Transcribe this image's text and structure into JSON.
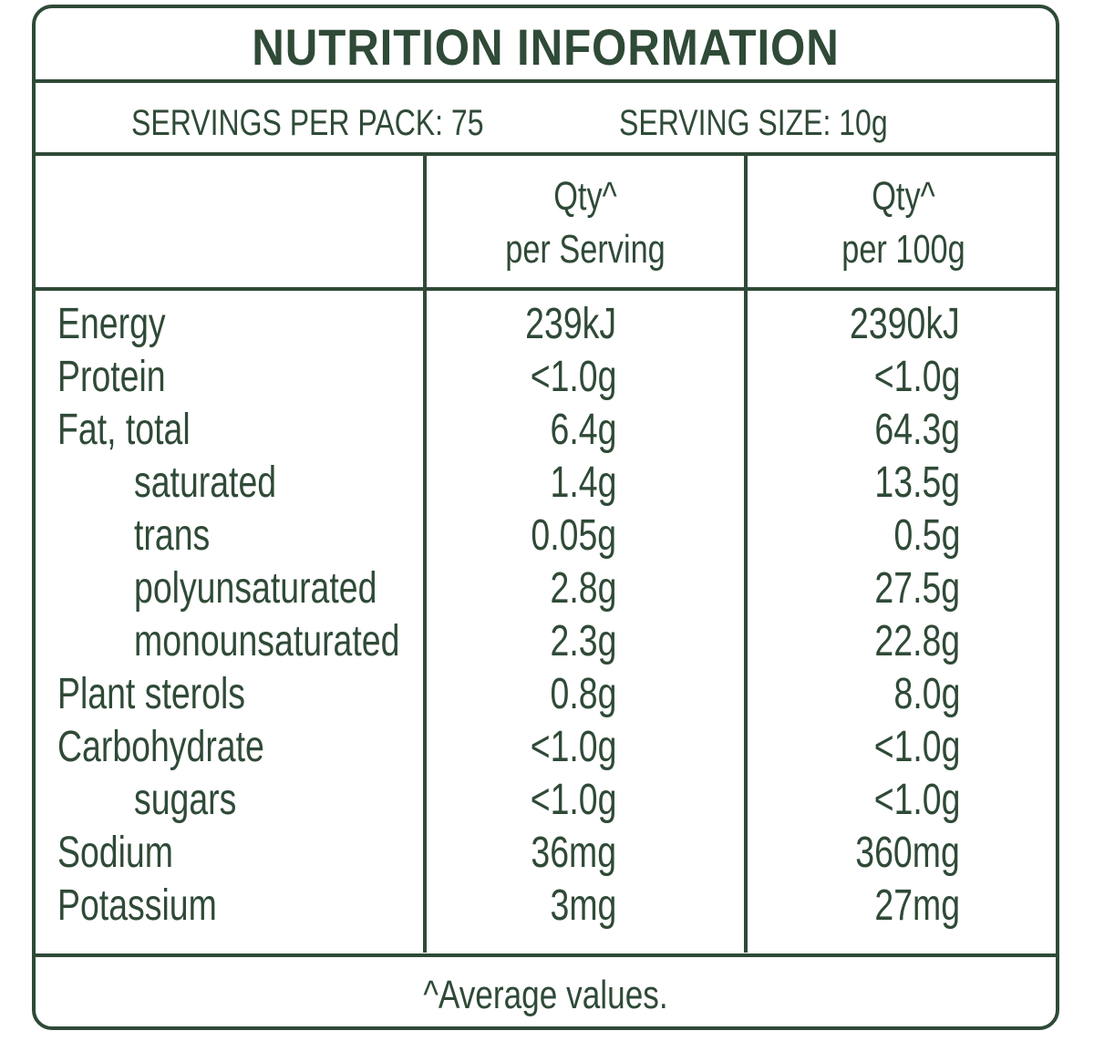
{
  "title": "NUTRITION INFORMATION",
  "servings_per_pack": "SERVINGS PER PACK: 75",
  "serving_size": "SERVING SIZE: 10g",
  "columns": {
    "per_serving_line1": "Qty^",
    "per_serving_line2": "per Serving",
    "per_100g_line1": "Qty^",
    "per_100g_line2": "per 100g"
  },
  "rows": [
    {
      "label": "Energy",
      "per_serving": "239kJ",
      "per_100g": "2390kJ"
    },
    {
      "label": "Protein",
      "per_serving": "<1.0g",
      "per_100g": "<1.0g"
    },
    {
      "label": "Fat, total",
      "per_serving": "6.4g",
      "per_100g": "64.3g"
    },
    {
      "label": "saturated",
      "per_serving": "1.4g",
      "per_100g": "13.5g"
    },
    {
      "label": "trans",
      "per_serving": "0.05g",
      "per_100g": "0.5g"
    },
    {
      "label": "polyunsaturated",
      "per_serving": "2.8g",
      "per_100g": "27.5g"
    },
    {
      "label": "monounsaturated",
      "per_serving": "2.3g",
      "per_100g": "22.8g"
    },
    {
      "label": "Plant sterols",
      "per_serving": "0.8g",
      "per_100g": "8.0g"
    },
    {
      "label": "Carbohydrate",
      "per_serving": "<1.0g",
      "per_100g": "<1.0g"
    },
    {
      "label": "sugars",
      "per_serving": "<1.0g",
      "per_100g": "<1.0g"
    },
    {
      "label": "Sodium",
      "per_serving": "36mg",
      "per_100g": "360mg"
    },
    {
      "label": "Potassium",
      "per_serving": "3mg",
      "per_100g": "27mg"
    }
  ],
  "footnote": "^Average values.",
  "colors": {
    "ink": "#2f4a37",
    "background": "#ffffff"
  }
}
